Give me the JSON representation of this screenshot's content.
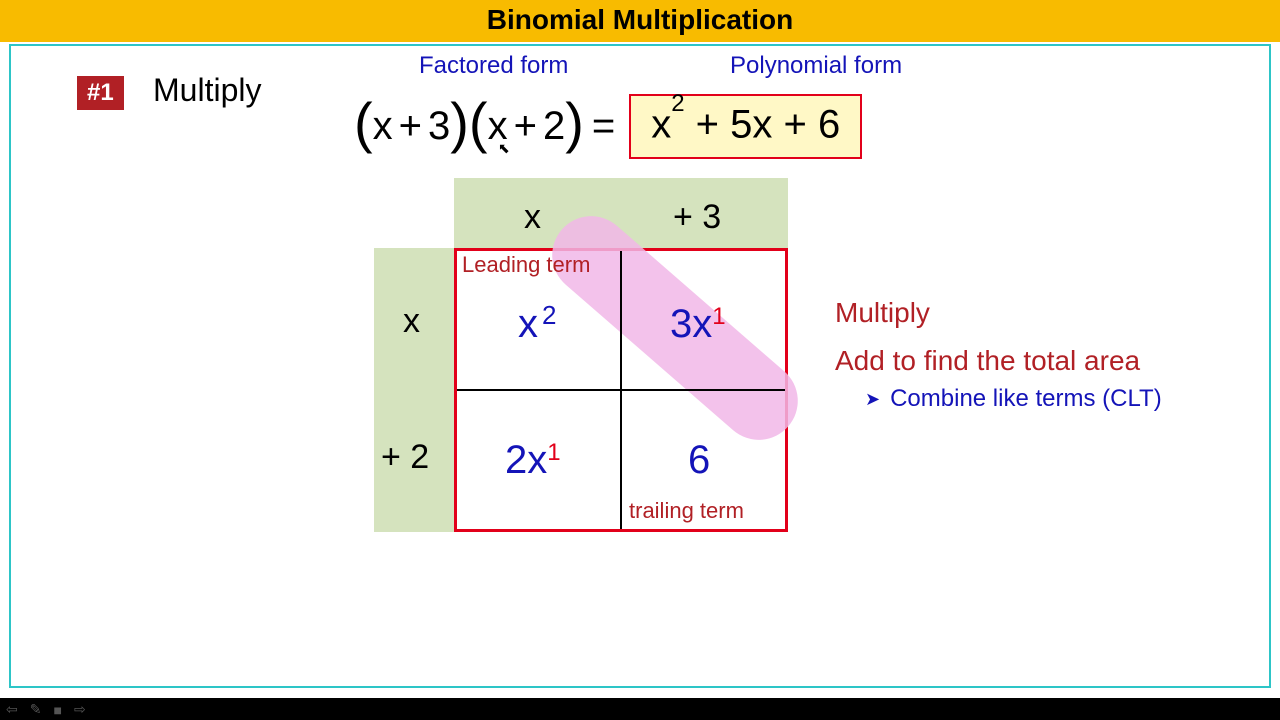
{
  "colors": {
    "title_bg": "#f8bb00",
    "border_teal": "#2dc5c7",
    "badge_bg": "#b12025",
    "dark_red": "#b12025",
    "red": "#e2001a",
    "blue_text": "#1414b8",
    "answer_bg": "#fff8c6",
    "hdr_bg": "#d5e3be",
    "pink_hl": "#f1b7e8"
  },
  "title": "Binomial Multiplication",
  "badge": "#1",
  "instruction": "Multiply",
  "labels": {
    "factored": "Factored form",
    "polynomial": "Polynomial form"
  },
  "equation": {
    "b1a": "x",
    "b1op": "+",
    "b1b": "3",
    "b2a": "x",
    "b2op": "+",
    "b2b": "2",
    "eq": "=",
    "answer_html": "x<sup>2</sup> + 5x + 6"
  },
  "grid": {
    "col_headers": [
      "x",
      "+ 3"
    ],
    "row_headers": [
      "x",
      "+ 2"
    ],
    "cells": {
      "tl": {
        "base": "x",
        "exp": "2",
        "exp_color": "blue"
      },
      "tr": {
        "base": "3x",
        "exp": "1",
        "exp_color": "red"
      },
      "bl": {
        "base": "2x",
        "exp": "1",
        "exp_color": "red"
      },
      "br": {
        "base": "6",
        "exp": "",
        "exp_color": ""
      }
    },
    "leading_label": "Leading term",
    "trailing_label": "trailing term"
  },
  "steps": {
    "s1": "Multiply",
    "s2": "Add to find the total area",
    "s3": "Combine like terms (CLT)"
  }
}
